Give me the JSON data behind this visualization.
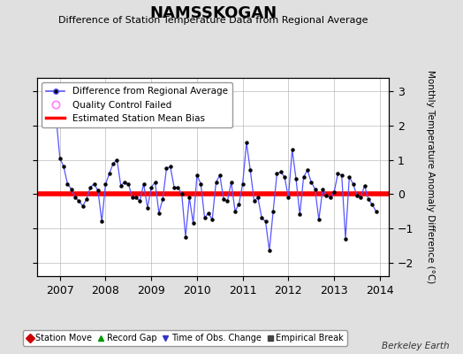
{
  "title": "NAMSSKOGAN",
  "subtitle": "Difference of Station Temperature Data from Regional Average",
  "ylabel": "Monthly Temperature Anomaly Difference (°C)",
  "xlim": [
    2006.5,
    2014.2
  ],
  "ylim": [
    -2.4,
    3.4
  ],
  "yticks": [
    -2,
    -1,
    0,
    1,
    2,
    3
  ],
  "xticks": [
    2007,
    2008,
    2009,
    2010,
    2011,
    2012,
    2013,
    2014
  ],
  "bias_line": 0.0,
  "bg_color": "#e0e0e0",
  "plot_bg_color": "#ffffff",
  "line_color": "#5555ff",
  "marker_color": "#000000",
  "bias_color": "#ff0000",
  "qc_fail_x": 2006.917,
  "qc_fail_y": 2.25,
  "monthly_data": [
    [
      2006.917,
      2.25
    ],
    [
      2007.0,
      1.05
    ],
    [
      2007.083,
      0.8
    ],
    [
      2007.167,
      0.3
    ],
    [
      2007.25,
      0.15
    ],
    [
      2007.333,
      -0.1
    ],
    [
      2007.417,
      -0.2
    ],
    [
      2007.5,
      -0.35
    ],
    [
      2007.583,
      -0.15
    ],
    [
      2007.667,
      0.2
    ],
    [
      2007.75,
      0.3
    ],
    [
      2007.833,
      0.1
    ],
    [
      2007.917,
      -0.8
    ],
    [
      2008.0,
      0.3
    ],
    [
      2008.083,
      0.6
    ],
    [
      2008.167,
      0.9
    ],
    [
      2008.25,
      1.0
    ],
    [
      2008.333,
      0.25
    ],
    [
      2008.417,
      0.35
    ],
    [
      2008.5,
      0.3
    ],
    [
      2008.583,
      -0.1
    ],
    [
      2008.667,
      -0.1
    ],
    [
      2008.75,
      -0.2
    ],
    [
      2008.833,
      0.3
    ],
    [
      2008.917,
      -0.4
    ],
    [
      2009.0,
      0.2
    ],
    [
      2009.083,
      0.35
    ],
    [
      2009.167,
      -0.55
    ],
    [
      2009.25,
      -0.15
    ],
    [
      2009.333,
      0.75
    ],
    [
      2009.417,
      0.8
    ],
    [
      2009.5,
      0.2
    ],
    [
      2009.583,
      0.2
    ],
    [
      2009.667,
      0.0
    ],
    [
      2009.75,
      -1.25
    ],
    [
      2009.833,
      -0.1
    ],
    [
      2009.917,
      -0.85
    ],
    [
      2010.0,
      0.55
    ],
    [
      2010.083,
      0.3
    ],
    [
      2010.167,
      -0.7
    ],
    [
      2010.25,
      -0.55
    ],
    [
      2010.333,
      -0.75
    ],
    [
      2010.417,
      0.35
    ],
    [
      2010.5,
      0.55
    ],
    [
      2010.583,
      -0.15
    ],
    [
      2010.667,
      -0.2
    ],
    [
      2010.75,
      0.35
    ],
    [
      2010.833,
      -0.5
    ],
    [
      2010.917,
      -0.3
    ],
    [
      2011.0,
      0.3
    ],
    [
      2011.083,
      1.5
    ],
    [
      2011.167,
      0.7
    ],
    [
      2011.25,
      -0.2
    ],
    [
      2011.333,
      -0.1
    ],
    [
      2011.417,
      -0.7
    ],
    [
      2011.5,
      -0.8
    ],
    [
      2011.583,
      -1.65
    ],
    [
      2011.667,
      -0.5
    ],
    [
      2011.75,
      0.6
    ],
    [
      2011.833,
      0.65
    ],
    [
      2011.917,
      0.5
    ],
    [
      2012.0,
      -0.1
    ],
    [
      2012.083,
      1.3
    ],
    [
      2012.167,
      0.45
    ],
    [
      2012.25,
      -0.6
    ],
    [
      2012.333,
      0.5
    ],
    [
      2012.417,
      0.7
    ],
    [
      2012.5,
      0.35
    ],
    [
      2012.583,
      0.15
    ],
    [
      2012.667,
      -0.75
    ],
    [
      2012.75,
      0.15
    ],
    [
      2012.833,
      -0.05
    ],
    [
      2012.917,
      -0.1
    ],
    [
      2013.0,
      0.05
    ],
    [
      2013.083,
      0.6
    ],
    [
      2013.167,
      0.55
    ],
    [
      2013.25,
      -1.3
    ],
    [
      2013.333,
      0.5
    ],
    [
      2013.417,
      0.3
    ],
    [
      2013.5,
      -0.05
    ],
    [
      2013.583,
      -0.1
    ],
    [
      2013.667,
      0.25
    ],
    [
      2013.75,
      -0.15
    ],
    [
      2013.833,
      -0.3
    ],
    [
      2013.917,
      -0.5
    ]
  ]
}
